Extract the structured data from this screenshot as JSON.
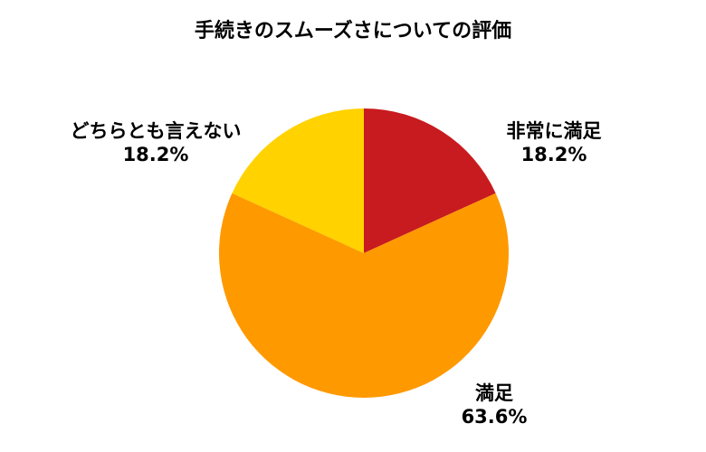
{
  "chart_data": {
    "type": "pie",
    "title": "手続きのスムーズさについての評価",
    "slices": [
      {
        "label": "非常に満足",
        "value": 18.2,
        "display": "18.2%",
        "color": "#C81B1F"
      },
      {
        "label": "満足",
        "value": 63.6,
        "display": "63.6%",
        "color": "#FF9900"
      },
      {
        "label": "どちらとも言えない",
        "value": 18.2,
        "display": "18.2%",
        "color": "#FFD200"
      }
    ]
  }
}
